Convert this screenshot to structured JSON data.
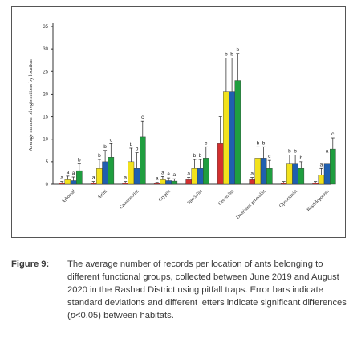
{
  "chart_data": {
    "type": "bar",
    "ylabel": "Average number of registrations by location",
    "ylim": [
      0,
      35
    ],
    "yticks": [
      0,
      5,
      10,
      15,
      20,
      25,
      30,
      35
    ],
    "categories": [
      "Arboreal",
      "Attini",
      "Camponotini",
      "Cryptic",
      "Specialist",
      "Generalist",
      "Dominant generalist",
      "Opportunist",
      "Rhytidoponera"
    ],
    "series": [
      {
        "color": "#d32f2f",
        "values": [
          0.3,
          0.3,
          0.3,
          0.2,
          1.0,
          9.0,
          1.0,
          0.3,
          0.3
        ]
      },
      {
        "color": "#f2e21c",
        "values": [
          1.0,
          3.5,
          5.0,
          1.0,
          3.5,
          20.5,
          5.8,
          4.5,
          2.0
        ]
      },
      {
        "color": "#1f5fb0",
        "values": [
          0.8,
          5.0,
          3.5,
          0.8,
          3.5,
          20.5,
          5.8,
          4.5,
          4.5
        ]
      },
      {
        "color": "#1f9e3f",
        "values": [
          3.0,
          6.0,
          10.5,
          0.7,
          5.8,
          23.0,
          3.5,
          3.5,
          7.8
        ]
      }
    ],
    "errors": [
      [
        0.3,
        0.3,
        0.3,
        0.2,
        0.5,
        6.0,
        0.5,
        0.3,
        0.3
      ],
      [
        0.8,
        2.0,
        3.0,
        0.7,
        2.0,
        7.5,
        2.5,
        2.0,
        1.5
      ],
      [
        0.8,
        2.5,
        3.5,
        0.6,
        2.0,
        7.5,
        2.5,
        2.0,
        2.0
      ],
      [
        1.5,
        3.0,
        3.5,
        0.5,
        2.5,
        6.0,
        1.8,
        1.5,
        2.5
      ]
    ],
    "letters": [
      [
        "a",
        "a",
        "a",
        "b"
      ],
      [
        "a",
        "b",
        "b",
        "c"
      ],
      [
        "a",
        "b",
        "b",
        "c"
      ],
      [
        "a",
        "a",
        "a",
        "a"
      ],
      [
        "a",
        "b",
        "b",
        "c"
      ],
      [
        "",
        "b",
        "b",
        "b"
      ],
      [
        "a",
        "b",
        "b",
        "c"
      ],
      [
        "",
        "b",
        "b",
        "b"
      ],
      [
        "",
        "a",
        "a",
        "c"
      ]
    ],
    "grid": false
  },
  "caption": {
    "label": "Figure 9:",
    "text_before_p": "The average number of records per location of ants belonging to different functional groups, collected between June 2019 and August 2020 in the Rashad District using pitfall traps. Error bars indicate standard deviations and different letters indicate significant differences (",
    "p_symbol": "p",
    "text_after_p": "<0.05) between habitats."
  }
}
